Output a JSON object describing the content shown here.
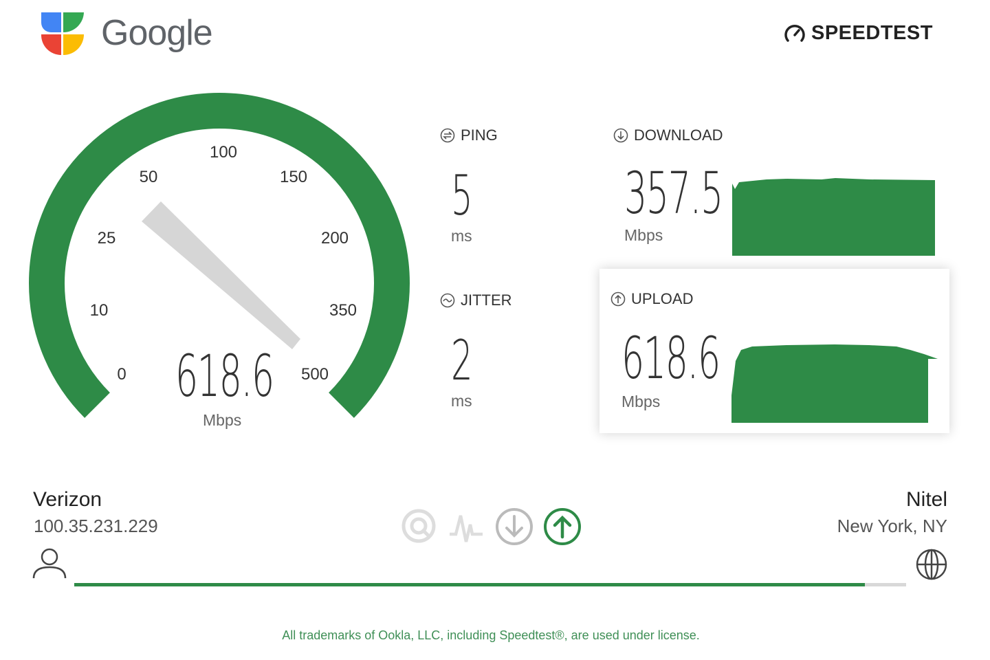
{
  "brand": {
    "google_label": "Google",
    "speedtest_label": "SPEEDTEST"
  },
  "gauge": {
    "ticks": [
      "0",
      "10",
      "25",
      "50",
      "100",
      "150",
      "200",
      "350",
      "500"
    ],
    "value": "618.6",
    "unit": "Mbps",
    "accent": "#2e8b47"
  },
  "ping": {
    "label": "PING",
    "value": "5",
    "unit": "ms"
  },
  "jitter": {
    "label": "JITTER",
    "value": "2",
    "unit": "ms"
  },
  "download": {
    "label": "DOWNLOAD",
    "value": "357.5",
    "unit": "Mbps"
  },
  "upload": {
    "label": "UPLOAD",
    "value": "618.6",
    "unit": "Mbps"
  },
  "isp": {
    "name": "Verizon",
    "ip": "100.35.231.229"
  },
  "server": {
    "name": "Nitel",
    "location": "New York, NY"
  },
  "progress": {
    "percent": 95
  },
  "steps": [
    "ping-icon",
    "jitter-icon",
    "download-icon",
    "upload-icon"
  ],
  "footer": "All trademarks of Ookla, LLC, including Speedtest®, are used under license."
}
